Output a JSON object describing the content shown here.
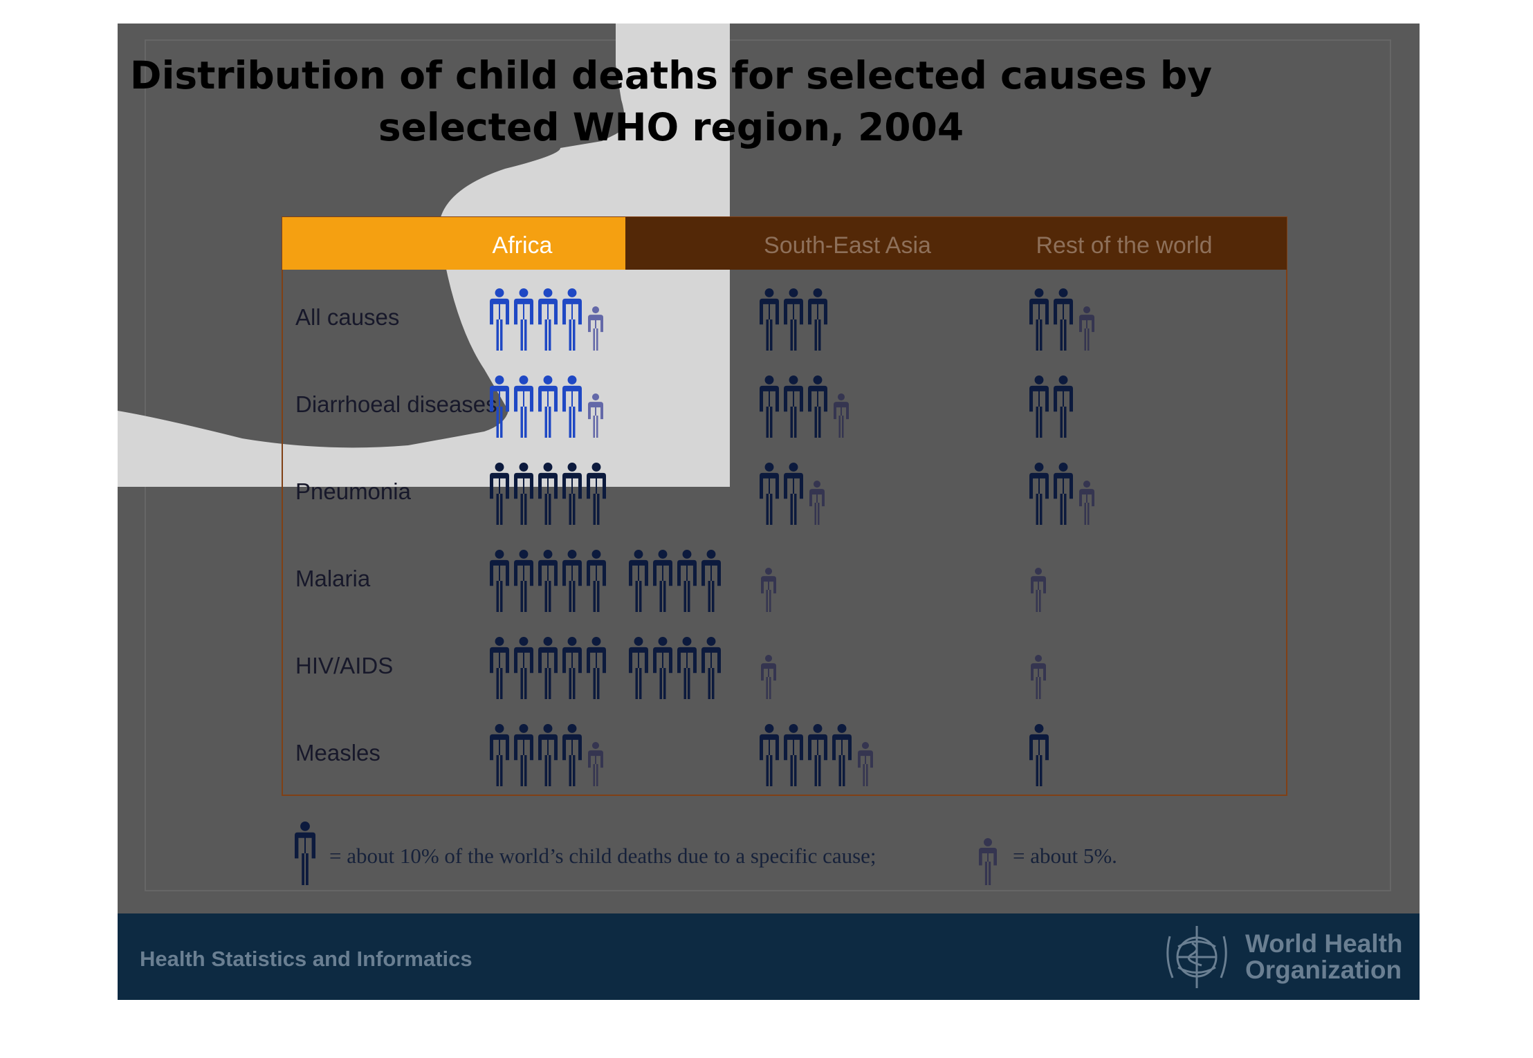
{
  "page": {
    "footer_text": "Health Statistics and Informatics",
    "org_name_line1": "World Health",
    "org_name_line2": "Organization",
    "logo_icon": "who-emblem-icon"
  },
  "chart_data": {
    "type": "table",
    "title": "Distribution of child deaths for selected causes by selected WHO region, 2004",
    "title_lines": [
      "Distribution of child deaths for selected causes by",
      "selected WHO region, 2004"
    ],
    "unit_note": "figures: 1 full figure = about 10% of the world's child deaths due to a specific cause; 1 small figure = about 5%",
    "columns": [
      "Africa",
      "South-East Asia",
      "Rest of the world"
    ],
    "rows": [
      {
        "label": "All causes",
        "values": [
          45,
          30,
          25
        ]
      },
      {
        "label": "Diarrhoeal diseases",
        "values": [
          45,
          35,
          20
        ]
      },
      {
        "label": "Pneumonia",
        "values": [
          50,
          25,
          25
        ]
      },
      {
        "label": "Malaria",
        "values": [
          90,
          5,
          5
        ]
      },
      {
        "label": "HIV/AIDS",
        "values": [
          90,
          5,
          5
        ]
      },
      {
        "label": "Measles",
        "values": [
          45,
          45,
          10
        ]
      }
    ],
    "legend": {
      "full_text": "= about 10% of the world’s child deaths due to a specific cause;",
      "half_text": "= about 5%."
    },
    "colors": {
      "header_bar": "#532807",
      "header_highlight": "#f5a011",
      "header_text": "#8e705a",
      "header_text_highlight": "#ffffff",
      "table_border": "#804015",
      "figure_full": "#0c1a3d",
      "figure_half": "#353550",
      "figure_full_highlight": "#1f48c4",
      "figure_half_highlight": "#6368a8",
      "label_text": "#17182a"
    }
  }
}
